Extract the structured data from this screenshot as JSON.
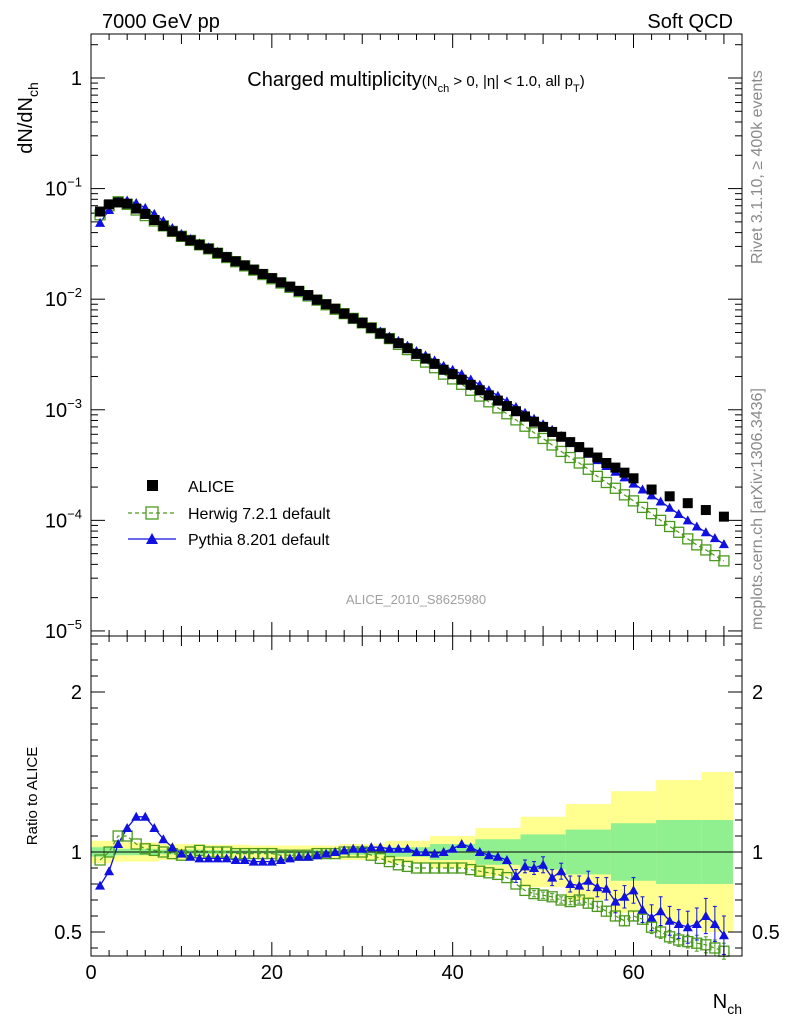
{
  "header": {
    "left": "7000 GeV pp",
    "right": "Soft QCD"
  },
  "side_labels": {
    "rivet": "Rivet 3.1.10, ≥ 400k events",
    "mcplots": "mcplots.cern.ch [arXiv:1306.3436]"
  },
  "chart_data": [
    {
      "type": "scatter",
      "title": {
        "main": "Charged multiplicity",
        "cond_open": "(N",
        "cond_sub1": "ch",
        "cond_mid": " > 0, |η| < 1.0, all p",
        "cond_sub2": "T",
        "cond_close": ")"
      },
      "ylabel": {
        "base": "dN/dN",
        "sub": "ch"
      },
      "yscale": "log",
      "ylim": [
        9e-06,
        2.5
      ],
      "xlim": [
        0,
        72
      ],
      "yticks": [
        {
          "v": 1,
          "base": "1",
          "exp": ""
        },
        {
          "v": 0.1,
          "base": "10",
          "exp": "−1"
        },
        {
          "v": 0.01,
          "base": "10",
          "exp": "−2"
        },
        {
          "v": 0.001,
          "base": "10",
          "exp": "−3"
        },
        {
          "v": 0.0001,
          "base": "10",
          "exp": "−4"
        },
        {
          "v": 1e-05,
          "base": "10",
          "exp": "−5"
        }
      ],
      "watermark": "ALICE_2010_S8625980",
      "legend_position": "bottom-left",
      "legend": {
        "data": "ALICE",
        "herwig": "Herwig 7.2.1 default",
        "pythia": "Pythia 8.201 default"
      },
      "series": [
        {
          "name": "ALICE",
          "color": "#000000",
          "x": [
            1,
            2,
            3,
            4,
            5,
            6,
            7,
            8,
            9,
            10,
            11,
            12,
            13,
            14,
            15,
            16,
            17,
            18,
            19,
            20,
            21,
            22,
            23,
            24,
            25,
            26,
            27,
            28,
            29,
            30,
            31,
            32,
            33,
            34,
            35,
            36,
            37,
            38,
            39,
            40,
            41,
            42,
            43,
            44,
            45,
            46,
            47,
            48,
            49,
            50,
            51,
            52,
            53,
            54,
            55,
            56,
            57,
            58,
            59,
            60,
            62,
            64,
            66,
            68,
            70
          ],
          "y": [
            0.062,
            0.072,
            0.075,
            0.073,
            0.066,
            0.059,
            0.052,
            0.046,
            0.041,
            0.037,
            0.034,
            0.031,
            0.0286,
            0.0262,
            0.024,
            0.022,
            0.0202,
            0.0185,
            0.0169,
            0.0155,
            0.0142,
            0.013,
            0.0119,
            0.0109,
            0.0099,
            0.009,
            0.0082,
            0.0074,
            0.0067,
            0.0061,
            0.0055,
            0.0049,
            0.0044,
            0.004,
            0.0036,
            0.0032,
            0.0029,
            0.0026,
            0.0023,
            0.0021,
            0.00187,
            0.00168,
            0.0015,
            0.00135,
            0.00121,
            0.00108,
            0.00097,
            0.00087,
            0.00078,
            0.0007,
            0.00063,
            0.00057,
            0.00051,
            0.00046,
            0.00041,
            0.00037,
            0.00033,
            0.0003,
            0.00027,
            0.00024,
            0.00019,
            0.000165,
            0.000143,
            0.000124,
            0.000108
          ]
        },
        {
          "name": "Herwig 7.2.1 default",
          "color": "#4b9a1e",
          "x": [
            1,
            2,
            3,
            4,
            5,
            6,
            7,
            8,
            9,
            10,
            11,
            12,
            13,
            14,
            15,
            16,
            17,
            18,
            19,
            20,
            21,
            22,
            23,
            24,
            25,
            26,
            27,
            28,
            29,
            30,
            31,
            32,
            33,
            34,
            35,
            36,
            37,
            38,
            39,
            40,
            41,
            42,
            43,
            44,
            45,
            46,
            47,
            48,
            49,
            50,
            51,
            52,
            53,
            54,
            55,
            56,
            57,
            58,
            59,
            60,
            61,
            62,
            63,
            64,
            65,
            66,
            67,
            68,
            69,
            70
          ],
          "y": [
            0.058,
            0.07,
            0.076,
            0.072,
            0.064,
            0.057,
            0.051,
            0.046,
            0.041,
            0.037,
            0.034,
            0.031,
            0.0285,
            0.026,
            0.0238,
            0.0218,
            0.02,
            0.0183,
            0.0167,
            0.0153,
            0.014,
            0.0128,
            0.0117,
            0.0107,
            0.0098,
            0.0089,
            0.0081,
            0.0074,
            0.0067,
            0.0061,
            0.0055,
            0.0049,
            0.0044,
            0.0039,
            0.0035,
            0.0031,
            0.0027,
            0.0024,
            0.0021,
            0.0019,
            0.0017,
            0.0015,
            0.00133,
            0.00118,
            0.00104,
            0.00092,
            0.00081,
            0.00071,
            0.00062,
            0.00055,
            0.00048,
            0.00042,
            0.00037,
            0.00033,
            0.00029,
            0.00025,
            0.00022,
            0.000195,
            0.00017,
            0.00015,
            0.000131,
            0.000115,
            0.0001,
            8.8e-05,
            7.8e-05,
            6.8e-05,
            6e-05,
            5.4e-05,
            4.8e-05,
            4.3e-05
          ]
        },
        {
          "name": "Pythia 8.201 default",
          "color": "#1010e0",
          "x": [
            1,
            2,
            3,
            4,
            5,
            6,
            7,
            8,
            9,
            10,
            11,
            12,
            13,
            14,
            15,
            16,
            17,
            18,
            19,
            20,
            21,
            22,
            23,
            24,
            25,
            26,
            27,
            28,
            29,
            30,
            31,
            32,
            33,
            34,
            35,
            36,
            37,
            38,
            39,
            40,
            41,
            42,
            43,
            44,
            45,
            46,
            47,
            48,
            49,
            50,
            51,
            52,
            53,
            54,
            55,
            56,
            57,
            58,
            59,
            60,
            61,
            62,
            63,
            64,
            65,
            66,
            67,
            68,
            69,
            70
          ],
          "y": [
            0.049,
            0.064,
            0.076,
            0.078,
            0.074,
            0.067,
            0.059,
            0.051,
            0.044,
            0.039,
            0.035,
            0.032,
            0.0294,
            0.0268,
            0.0244,
            0.0222,
            0.0202,
            0.0184,
            0.0168,
            0.0153,
            0.0139,
            0.0127,
            0.0116,
            0.0106,
            0.0097,
            0.0089,
            0.0081,
            0.0074,
            0.0068,
            0.0062,
            0.0056,
            0.0051,
            0.0046,
            0.0042,
            0.0038,
            0.0034,
            0.0031,
            0.0028,
            0.0025,
            0.0023,
            0.0021,
            0.00188,
            0.00168,
            0.0015,
            0.00134,
            0.00119,
            0.00106,
            0.00094,
            0.00083,
            0.00074,
            0.00066,
            0.00058,
            0.00051,
            0.00045,
            0.0004,
            0.00035,
            0.00031,
            0.000275,
            0.000245,
            0.000215,
            0.00019,
            0.000168,
            0.000148,
            0.00013,
            0.000114,
            0.0001,
            8.8e-05,
            7.8e-05,
            6.9e-05,
            6.1e-05
          ]
        }
      ]
    },
    {
      "type": "line",
      "ylabel": "Ratio to ALICE",
      "xlabel": {
        "base": "N",
        "sub": "ch"
      },
      "xlim": [
        0,
        72
      ],
      "ylim": [
        0.35,
        2.35
      ],
      "xticks": [
        0,
        20,
        40,
        60
      ],
      "yticks": [
        {
          "v": 0.5,
          "label": "0.5"
        },
        {
          "v": 1,
          "label": "1"
        },
        {
          "v": 2,
          "label": "2"
        }
      ],
      "band_stat": {
        "color": "#90f090",
        "x": [
          0,
          5,
          10,
          15,
          20,
          25,
          30,
          35,
          40,
          45,
          50,
          55,
          60,
          65,
          70
        ],
        "half": [
          0.03,
          0.02,
          0.015,
          0.012,
          0.01,
          0.012,
          0.018,
          0.03,
          0.05,
          0.08,
          0.11,
          0.14,
          0.18,
          0.2,
          0.2
        ]
      },
      "band_total": {
        "color": "#ffff90",
        "x": [
          0,
          5,
          10,
          15,
          20,
          25,
          30,
          35,
          40,
          45,
          50,
          55,
          60,
          65,
          70
        ],
        "half": [
          0.07,
          0.06,
          0.05,
          0.045,
          0.04,
          0.04,
          0.05,
          0.07,
          0.1,
          0.15,
          0.22,
          0.3,
          0.38,
          0.45,
          0.5
        ]
      },
      "series": [
        {
          "name": "Herwig 7.2.1 default",
          "color": "#4b9a1e",
          "x": [
            1,
            2,
            3,
            4,
            5,
            6,
            7,
            8,
            9,
            10,
            11,
            12,
            13,
            14,
            15,
            16,
            17,
            18,
            19,
            20,
            21,
            22,
            23,
            24,
            25,
            26,
            27,
            28,
            29,
            30,
            31,
            32,
            33,
            34,
            35,
            36,
            37,
            38,
            39,
            40,
            41,
            42,
            43,
            44,
            45,
            46,
            47,
            48,
            49,
            50,
            51,
            52,
            53,
            54,
            55,
            56,
            57,
            58,
            59,
            60,
            61,
            62,
            63,
            64,
            65,
            66,
            67,
            68,
            69,
            70
          ],
          "y": [
            0.95,
            1.0,
            1.1,
            1.1,
            1.05,
            1.02,
            1.01,
            1.0,
            0.99,
            0.98,
            1.0,
            1.01,
            1.0,
            1.0,
            1.0,
            0.99,
            0.99,
            0.99,
            0.99,
            0.99,
            0.98,
            0.98,
            0.98,
            0.98,
            0.99,
            0.99,
            0.99,
            1.0,
            1.0,
            1.0,
            0.98,
            0.96,
            0.94,
            0.92,
            0.91,
            0.9,
            0.9,
            0.9,
            0.9,
            0.9,
            0.9,
            0.89,
            0.88,
            0.87,
            0.86,
            0.84,
            0.8,
            0.76,
            0.74,
            0.73,
            0.72,
            0.7,
            0.69,
            0.7,
            0.68,
            0.66,
            0.63,
            0.6,
            0.57,
            0.6,
            0.58,
            0.53,
            0.5,
            0.47,
            0.45,
            0.44,
            0.43,
            0.42,
            0.4,
            0.38
          ],
          "err": [
            0,
            0,
            0,
            0,
            0,
            0,
            0,
            0,
            0,
            0,
            0,
            0,
            0,
            0,
            0,
            0,
            0,
            0,
            0,
            0,
            0,
            0,
            0,
            0,
            0,
            0,
            0,
            0,
            0,
            0,
            0,
            0,
            0,
            0,
            0,
            0,
            0,
            0,
            0,
            0,
            0,
            0,
            0,
            0,
            0,
            0,
            0,
            0,
            0.02,
            0.02,
            0.02,
            0.02,
            0.02,
            0.02,
            0.03,
            0.03,
            0.03,
            0.03,
            0.03,
            0.03,
            0.03,
            0.04,
            0.04,
            0.04,
            0.04,
            0.04,
            0.05,
            0.05,
            0.05,
            0.05
          ]
        },
        {
          "name": "Pythia 8.201 default",
          "color": "#1010e0",
          "x": [
            1,
            2,
            3,
            4,
            5,
            6,
            7,
            8,
            9,
            10,
            11,
            12,
            13,
            14,
            15,
            16,
            17,
            18,
            19,
            20,
            21,
            22,
            23,
            24,
            25,
            26,
            27,
            28,
            29,
            30,
            31,
            32,
            33,
            34,
            35,
            36,
            37,
            38,
            39,
            40,
            41,
            42,
            43,
            44,
            45,
            46,
            47,
            48,
            49,
            50,
            51,
            52,
            53,
            54,
            55,
            56,
            57,
            58,
            59,
            60,
            61,
            62,
            63,
            64,
            65,
            66,
            67,
            68,
            69,
            70
          ],
          "y": [
            0.79,
            0.88,
            1.05,
            1.15,
            1.22,
            1.22,
            1.15,
            1.08,
            1.03,
            0.99,
            0.97,
            0.96,
            0.96,
            0.96,
            0.96,
            0.95,
            0.95,
            0.94,
            0.94,
            0.94,
            0.95,
            0.96,
            0.97,
            0.97,
            0.98,
            0.99,
            1.0,
            1.01,
            1.02,
            1.02,
            1.03,
            1.03,
            1.02,
            1.02,
            1.02,
            1.0,
            1.0,
            0.99,
            1.0,
            1.02,
            1.05,
            1.03,
            1.0,
            0.98,
            0.97,
            0.95,
            0.85,
            0.91,
            0.9,
            0.92,
            0.84,
            0.88,
            0.8,
            0.79,
            0.82,
            0.78,
            0.77,
            0.69,
            0.72,
            0.76,
            0.64,
            0.59,
            0.63,
            0.57,
            0.55,
            0.53,
            0.55,
            0.6,
            0.55,
            0.48
          ],
          "err": [
            0,
            0,
            0,
            0,
            0,
            0,
            0,
            0,
            0,
            0,
            0,
            0,
            0,
            0,
            0,
            0,
            0,
            0,
            0,
            0,
            0,
            0,
            0,
            0,
            0,
            0,
            0,
            0,
            0,
            0,
            0,
            0,
            0,
            0,
            0,
            0,
            0,
            0,
            0,
            0,
            0,
            0,
            0,
            0,
            0,
            0,
            0.04,
            0.04,
            0.04,
            0.05,
            0.05,
            0.05,
            0.05,
            0.06,
            0.06,
            0.06,
            0.07,
            0.07,
            0.07,
            0.08,
            0.08,
            0.08,
            0.09,
            0.09,
            0.09,
            0.1,
            0.1,
            0.11,
            0.11,
            0.12
          ]
        }
      ]
    }
  ]
}
